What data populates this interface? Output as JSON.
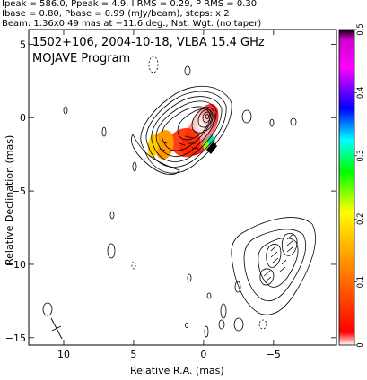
{
  "header": {
    "line1": "Ipeak = 586.0, Ppeak = 4.9, I RMS = 0.29, P RMS = 0.30",
    "line2": "Ibase = 0.80, Pbase = 0.99 (mJy/beam), steps: x 2",
    "line3": "Beam: 1.36x0.49 mas at −11.6 deg., Nat. Wgt. (no taper)"
  },
  "chart_data": {
    "type": "heatmap",
    "title_line1": "1502+106, 2004-10-18, VLBA 15.4 GHz",
    "title_line2": "MOJAVE Program",
    "xlabel": "Relative R.A. (mas)",
    "ylabel": "Relative Declination (mas)",
    "xlim": [
      12.5,
      -9.5
    ],
    "ylim": [
      -15.5,
      6
    ],
    "x_ticks": [
      10,
      5,
      0,
      -5
    ],
    "y_ticks": [
      5,
      0,
      -5,
      -10,
      -15
    ],
    "colorbar": {
      "range": [
        0,
        0.5
      ],
      "ticks": [
        0,
        0.1,
        0.2,
        0.3,
        0.4,
        0.5
      ],
      "stops": [
        "#ffffff",
        "#ff0000",
        "#ffcc00",
        "#ffff00",
        "#00ff00",
        "#00ffff",
        "#0000ff",
        "#ff00ff",
        "#000000"
      ]
    },
    "beam": {
      "major": 1.36,
      "minor": 0.49,
      "pa_deg": -11.6,
      "x": 10.5,
      "y": -13.8
    },
    "core": {
      "x": 0,
      "y": 0
    },
    "contour_levels_mJy_per_beam": [
      0.8,
      1.6,
      3.2,
      6.4,
      12.8,
      25.6,
      51.2,
      102.4,
      204.8,
      409.6
    ]
  }
}
